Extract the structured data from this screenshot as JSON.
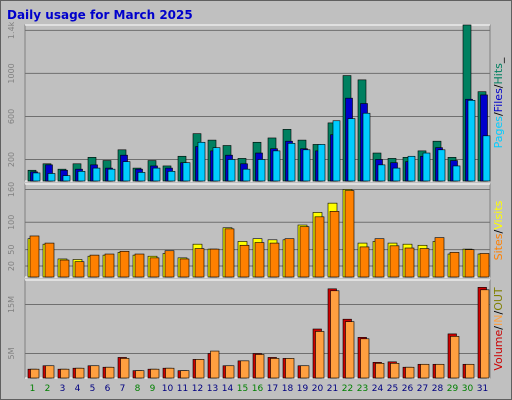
{
  "title": "Daily usage for March 2025",
  "colors": {
    "background": "#c0c0c0",
    "plot_background": "#c0c0c0",
    "gridline": "#6f6f6f",
    "title": "#0000cc",
    "hits": "#008060",
    "files": "#0000cc",
    "pages": "#00ccff",
    "visits": "#ffff00",
    "sites": "#ff8000",
    "kbytes": "#cc0000",
    "in": "#ffa040",
    "out": "#808000",
    "weekend_label": "#008000",
    "weekday_label": "#000080"
  },
  "chart_data": [
    {
      "type": "bar",
      "panel": "hits",
      "legend": [
        {
          "name": "Pages",
          "color": "#00ccff"
        },
        {
          "name": "Files",
          "color": "#0000cc"
        },
        {
          "name": "Hits",
          "color": "#008060"
        }
      ],
      "legend_separator": "/",
      "legend_suffix": "_",
      "yticks": [
        200,
        600,
        1000,
        "1.4k"
      ],
      "ylim": [
        0,
        1450
      ],
      "grid": true,
      "categories": [
        "1",
        "2",
        "3",
        "4",
        "5",
        "6",
        "7",
        "8",
        "9",
        "10",
        "11",
        "12",
        "13",
        "14",
        "15",
        "16",
        "17",
        "18",
        "19",
        "20",
        "21",
        "22",
        "23",
        "24",
        "25",
        "26",
        "27",
        "28",
        "29",
        "30",
        "31"
      ],
      "series": [
        {
          "name": "Hits",
          "values": [
            100,
            160,
            110,
            160,
            220,
            190,
            290,
            120,
            190,
            140,
            230,
            440,
            380,
            330,
            210,
            360,
            400,
            480,
            380,
            340,
            540,
            980,
            940,
            260,
            210,
            220,
            280,
            370,
            220,
            1450,
            190
          ]
        },
        {
          "name": "Files",
          "values": [
            85,
            150,
            100,
            110,
            150,
            120,
            240,
            110,
            140,
            120,
            170,
            320,
            280,
            240,
            160,
            260,
            300,
            370,
            300,
            280,
            430,
            770,
            720,
            200,
            170,
            180,
            230,
            310,
            190,
            760,
            160
          ]
        },
        {
          "name": "Pages",
          "values": [
            75,
            70,
            50,
            90,
            120,
            110,
            180,
            80,
            120,
            90,
            170,
            360,
            310,
            200,
            110,
            200,
            280,
            350,
            290,
            340,
            560,
            580,
            630,
            150,
            120,
            230,
            260,
            290,
            140,
            750,
            130
          ]
        }
      ],
      "series_tail": [
        {
          "name": "Hits",
          "value": 830
        },
        {
          "name": "Files",
          "value": 800
        },
        {
          "name": "Pages",
          "value": 420
        }
      ]
    },
    {
      "type": "bar",
      "panel": "visits",
      "legend": [
        {
          "name": "Sites",
          "color": "#ff8000"
        },
        {
          "name": "Visits",
          "color": "#ffff00"
        }
      ],
      "legend_separator": "/",
      "yticks": [
        20,
        50,
        100,
        160
      ],
      "ylim": [
        0,
        170
      ],
      "grid": true,
      "series": [
        {
          "name": "Visits",
          "values": [
            70,
            60,
            33,
            32,
            38,
            40,
            45,
            40,
            38,
            43,
            35,
            60,
            51,
            90,
            65,
            70,
            68,
            68,
            95,
            118,
            135,
            160,
            62,
            65,
            62,
            60,
            58,
            65,
            42,
            51,
            42
          ]
        },
        {
          "name": "Sites",
          "values": [
            75,
            62,
            31,
            28,
            40,
            42,
            47,
            42,
            35,
            48,
            33,
            52,
            51,
            88,
            58,
            63,
            62,
            70,
            92,
            110,
            120,
            158,
            55,
            70,
            57,
            53,
            52,
            72,
            45,
            50,
            43
          ]
        }
      ]
    },
    {
      "type": "bar",
      "panel": "volume",
      "legend": [
        {
          "name": "Volume",
          "color": "#cc0000"
        },
        {
          "name": "IN",
          "color": "#ffa040"
        },
        {
          "name": "OUT",
          "color": "#808000"
        }
      ],
      "legend_separator": "/",
      "yticks": [
        "5M",
        "15M"
      ],
      "ylim": [
        0,
        20
      ],
      "grid": true,
      "series": [
        {
          "name": "Volume",
          "values": [
            1.8,
            2.5,
            1.8,
            2.0,
            2.5,
            2.2,
            4.2,
            1.5,
            1.8,
            2.0,
            1.5,
            3.8,
            5.0,
            2.5,
            3.5,
            5.0,
            4.2,
            4.0,
            2.5,
            10.0,
            18.2,
            12.0,
            8.3,
            3.2,
            3.3,
            2.2,
            2.8,
            2.8,
            9.0,
            2.8,
            18.5
          ]
        },
        {
          "name": "IN",
          "values": [
            1.8,
            2.5,
            1.8,
            2.0,
            2.5,
            2.2,
            4.0,
            1.5,
            1.8,
            2.0,
            1.5,
            3.8,
            5.5,
            2.5,
            3.5,
            4.8,
            4.0,
            4.0,
            2.5,
            9.5,
            17.8,
            11.5,
            8.0,
            3.0,
            3.0,
            2.2,
            2.8,
            2.8,
            8.5,
            2.8,
            18.0
          ]
        }
      ]
    }
  ],
  "x_axis": {
    "labels": [
      "1",
      "2",
      "3",
      "4",
      "5",
      "6",
      "7",
      "8",
      "9",
      "10",
      "11",
      "12",
      "13",
      "14",
      "15",
      "16",
      "17",
      "18",
      "19",
      "20",
      "21",
      "22",
      "23",
      "24",
      "25",
      "26",
      "27",
      "28",
      "29",
      "30",
      "31"
    ],
    "weekend": [
      1,
      2,
      8,
      9,
      15,
      16,
      22,
      23,
      29,
      30
    ]
  }
}
